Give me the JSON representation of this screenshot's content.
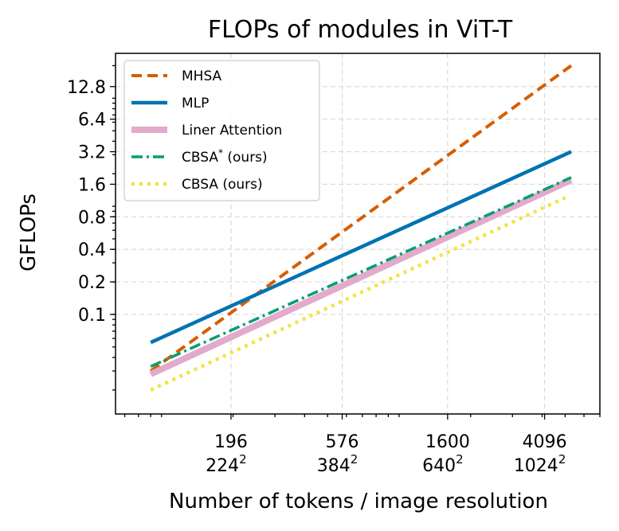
{
  "chart_data": {
    "type": "line",
    "title": "FLOPs of modules in ViT-T",
    "xlabel": "Number of tokens / image resolution",
    "ylabel": "GFLOPs",
    "xscale": "log",
    "yscale": "log2",
    "xlim": [
      64,
      7000
    ],
    "ylim": [
      0.012,
      26
    ],
    "grid": true,
    "legend_position": "top-left",
    "x_ticks": [
      {
        "value": 196,
        "tokens": "196",
        "res": "224",
        "sup": "2"
      },
      {
        "value": 576,
        "tokens": "576",
        "res": "384",
        "sup": "2"
      },
      {
        "value": 1600,
        "tokens": "1600",
        "res": "640",
        "sup": "2"
      },
      {
        "value": 4096,
        "tokens": "4096",
        "res": "1024",
        "sup": "2"
      }
    ],
    "y_ticks": [
      {
        "value": 0.1,
        "label": "0.1"
      },
      {
        "value": 0.2,
        "label": "0.2"
      },
      {
        "value": 0.4,
        "label": "0.4"
      },
      {
        "value": 0.8,
        "label": "0.8"
      },
      {
        "value": 1.6,
        "label": "1.6"
      },
      {
        "value": 3.2,
        "label": "3.2"
      },
      {
        "value": 6.4,
        "label": "6.4"
      },
      {
        "value": 12.8,
        "label": "12.8"
      }
    ],
    "series": [
      {
        "name": "MHSA",
        "color": "#d55e00",
        "style": "dashed",
        "width": 4,
        "x": [
          90,
          5300
        ],
        "y": [
          0.03,
          20
        ]
      },
      {
        "name": "MLP",
        "color": "#0072b2",
        "style": "solid",
        "width": 4.5,
        "x": [
          90,
          5300
        ],
        "y": [
          0.055,
          3.2
        ]
      },
      {
        "name": "Liner Attention",
        "color": "#e2aacb",
        "style": "solid",
        "width": 8,
        "x": [
          90,
          5300
        ],
        "y": [
          0.028,
          1.75
        ]
      },
      {
        "name": "CBSA",
        "name_sup": "*",
        "name_suffix": " (ours)",
        "color": "#009e73",
        "style": "dashdot",
        "width": 3.5,
        "x": [
          90,
          5300
        ],
        "y": [
          0.033,
          1.85
        ]
      },
      {
        "name": "CBSA (ours)",
        "color": "#f0e442",
        "style": "dotted",
        "width": 4.5,
        "x": [
          90,
          5000
        ],
        "y": [
          0.02,
          1.2
        ]
      }
    ]
  }
}
